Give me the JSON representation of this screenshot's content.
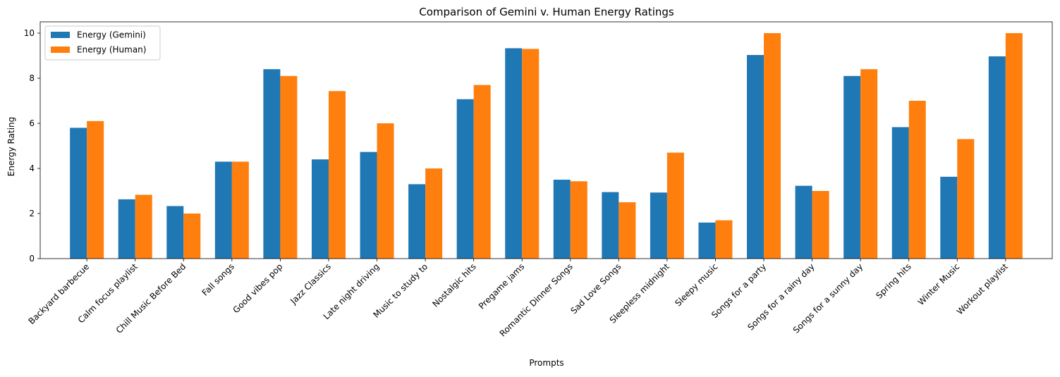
{
  "chart_data": {
    "type": "bar",
    "title": "Comparison of Gemini v. Human Energy Ratings",
    "xlabel": "Prompts",
    "ylabel": "Energy Rating",
    "ylim": [
      0,
      10.5
    ],
    "yticks": [
      0,
      2,
      4,
      6,
      8,
      10
    ],
    "grid": false,
    "legend_position": "top-left",
    "categories": [
      "Backyard barbecue",
      "Calm focus playlist",
      "Chill Music Before Bed",
      "Fall songs",
      "Good vibes pop",
      "Jazz Classics",
      "Late night driving",
      "Music to study to",
      "Nostalgic hits",
      "Pregame jams",
      "Romantic Dinner Songs",
      "Sad Love Songs",
      "Sleepless midnight",
      "Sleepy music",
      "Songs for a party",
      "Songs for a rainy day",
      "Songs for a sunny day",
      "Spring hits",
      "Winter Music",
      "Workout playlist"
    ],
    "series": [
      {
        "name": "Energy (Gemini)",
        "color": "#1f77b4",
        "values": [
          5.8,
          2.63,
          2.33,
          4.3,
          8.4,
          4.4,
          4.73,
          3.3,
          7.07,
          9.33,
          3.5,
          2.95,
          2.93,
          1.6,
          9.03,
          3.23,
          8.1,
          5.83,
          3.63,
          8.97
        ]
      },
      {
        "name": "Energy (Human)",
        "color": "#ff7f0e",
        "values": [
          6.1,
          2.83,
          2.0,
          4.3,
          8.1,
          7.43,
          6.0,
          4.0,
          7.7,
          9.3,
          3.43,
          2.5,
          4.7,
          1.7,
          10.0,
          3.0,
          8.4,
          7.0,
          5.3,
          10.0
        ]
      }
    ]
  }
}
